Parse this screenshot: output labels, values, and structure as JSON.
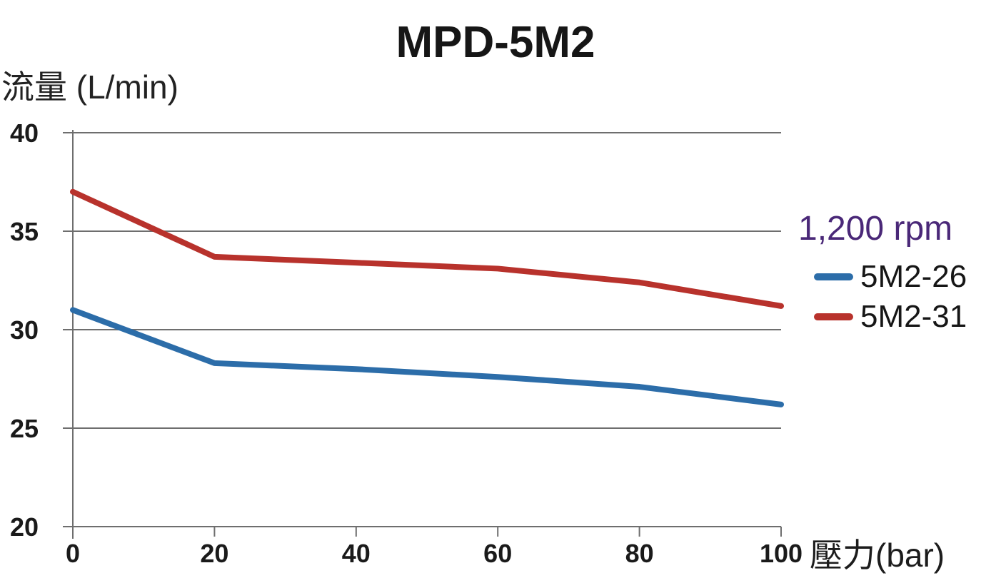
{
  "chart_data": {
    "type": "line",
    "title": "MPD-5M2",
    "ylabel": "流量 (L/min)",
    "xlabel": "壓力(bar)",
    "legend_title": "1,200 rpm",
    "legend_title_color": "#4A2878",
    "legend_position": "right",
    "x": [
      0,
      20,
      40,
      60,
      80,
      100
    ],
    "xticks": [
      0,
      20,
      40,
      60,
      80,
      100
    ],
    "yticks": [
      20,
      25,
      30,
      35,
      40
    ],
    "xlim": [
      0,
      100
    ],
    "ylim": [
      20,
      40
    ],
    "grid": true,
    "series": [
      {
        "name": "5M2-26",
        "color": "#2C6DA9",
        "values": [
          31.0,
          28.3,
          28.0,
          27.6,
          27.1,
          26.2
        ]
      },
      {
        "name": "5M2-31",
        "color": "#B8322C",
        "values": [
          37.0,
          33.7,
          33.4,
          33.1,
          32.4,
          31.2
        ]
      }
    ]
  },
  "colors": {
    "background": "#ffffff",
    "text": "#1a1a1a",
    "axis": "#6e6e6e"
  }
}
